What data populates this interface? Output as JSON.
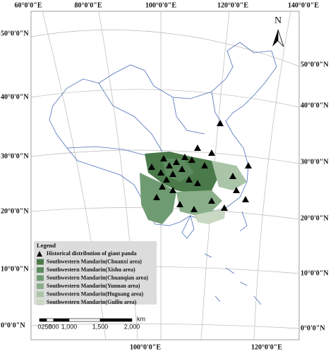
{
  "graticule": {
    "top": [
      "60°0'0\"E",
      "80°0'0\"E",
      "100°0'0\"E",
      "120°0'0\"E",
      "140°0'0\"E"
    ],
    "bottom": [
      "100°0'0\"E",
      "120°0'0\"E"
    ],
    "left": [
      "50°0'0\"N",
      "40°0'0\"N",
      "30°0'0\"N",
      "20°0'0\"N",
      "10°0'0\"N",
      "0°0'0\"N"
    ],
    "right": [
      "50°0'0\"N",
      "40°0'0\"N",
      "30°0'0\"N",
      "20°0'0\"N",
      "10°0'0\"N",
      "0°0'0\"N"
    ]
  },
  "north_arrow": "N",
  "legend": {
    "title": "Legend",
    "items": [
      "Historical distribution of giant panda",
      "Southwestern Mandarin(Chuanxi area)",
      "Southwestern Mandarin(Xishu area)",
      "Southwestern Mandarin(Chuanqian area)",
      "Southwestern Mandarin(Yunnan area)",
      "Southwestern Mandarin(Huguang area)",
      "Southwestern Mandarin(Guiliu area)"
    ]
  },
  "scale_bar": {
    "labels": [
      "0",
      "250",
      "500",
      "1,000",
      "1,500",
      "2,000"
    ],
    "unit": "km"
  }
}
